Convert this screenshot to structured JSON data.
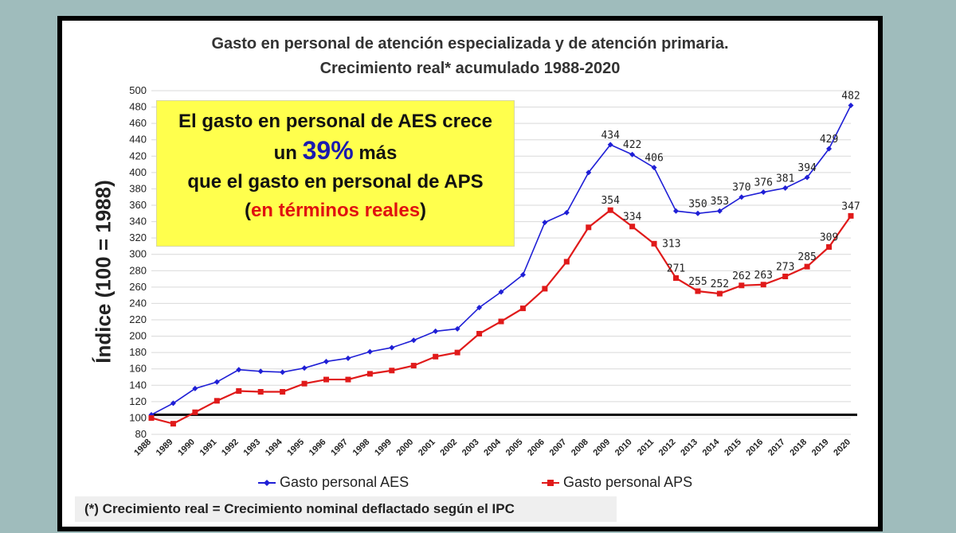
{
  "chart_data": {
    "type": "line",
    "title_line1": "Gasto en personal de atención especializada y de atención primaria.",
    "title_line2": "Crecimiento real* acumulado 1988-2020",
    "ylabel": "Índice (100 = 1988)",
    "xlabel": "",
    "ylim": [
      80,
      500
    ],
    "ytick_step": 20,
    "grid": true,
    "legend_position": "bottom",
    "x": [
      "1988",
      "1989",
      "1990",
      "1991",
      "1992",
      "1993",
      "1994",
      "1995",
      "1996",
      "1997",
      "1998",
      "1999",
      "2000",
      "2001",
      "2002",
      "2003",
      "2004",
      "2005",
      "2006",
      "2007",
      "2008",
      "2009",
      "2010",
      "2011",
      "2012",
      "2013",
      "2014",
      "2015",
      "2016",
      "2017",
      "2018",
      "2019",
      "2020"
    ],
    "reference_line": 104,
    "series": [
      {
        "name": "Gasto personal AES",
        "color": "#1f1fd6",
        "marker": "diamond",
        "values": [
          104,
          118,
          136,
          144,
          159,
          157,
          156,
          161,
          169,
          173,
          181,
          186,
          195,
          206,
          209,
          235,
          254,
          275,
          339,
          351,
          400,
          434,
          422,
          406,
          353,
          350,
          353,
          370,
          376,
          381,
          394,
          429,
          482
        ],
        "labels": [
          "",
          "",
          "",
          "",
          "",
          "",
          "",
          "",
          "",
          "",
          "",
          "",
          "",
          "",
          "",
          "",
          "",
          "",
          "",
          "",
          "",
          "434",
          "422",
          "406",
          "",
          "350",
          "353",
          "370",
          "376",
          "381",
          "394",
          "429",
          "482"
        ]
      },
      {
        "name": "Gasto personal APS",
        "color": "#e01a1a",
        "marker": "square",
        "values": [
          100,
          93,
          107,
          121,
          133,
          132,
          132,
          142,
          147,
          147,
          154,
          158,
          164,
          175,
          180,
          203,
          218,
          234,
          258,
          291,
          333,
          354,
          334,
          313,
          271,
          255,
          252,
          262,
          263,
          273,
          285,
          309,
          347
        ],
        "labels": [
          "",
          "",
          "",
          "",
          "",
          "",
          "",
          "",
          "",
          "",
          "",
          "",
          "",
          "",
          "",
          "",
          "",
          "",
          "",
          "",
          "",
          "354",
          "334",
          "313",
          "271",
          "255",
          "252",
          "262",
          "263",
          "273",
          "285",
          "309",
          "347"
        ]
      }
    ]
  },
  "callout": {
    "line1": "El gasto en personal de AES crece",
    "line2_pre": "un",
    "line2_pct": "39%",
    "line2_post": "más",
    "line3": "que el gasto en personal de  APS",
    "line4_open": "(",
    "line4_red": "en términos reales",
    "line4_close": ")"
  },
  "note": "(*)  Crecimiento real = Crecimiento nominal deflactado según el IPC"
}
